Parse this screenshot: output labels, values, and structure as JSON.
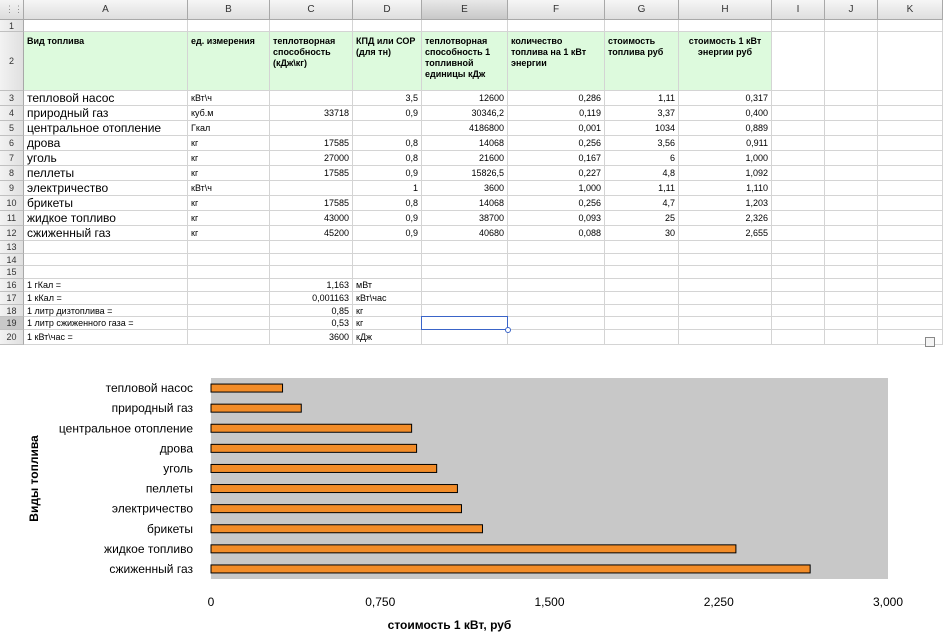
{
  "sheet": {
    "columns": [
      "A",
      "B",
      "C",
      "D",
      "E",
      "F",
      "G",
      "H",
      "I",
      "J",
      "K"
    ],
    "selected_column": "E",
    "selected_row": "19",
    "header_row": {
      "a": "Вид топлива",
      "b": "ед. измерения",
      "c": "теплотворная способность (кДж\\кг)",
      "d": "КПД или СОР (для тн)",
      "e": "теплотворная способность 1 топливной единицы кДж",
      "f": "количество топлива на 1 кВт энергии",
      "g": "стоимость топлива руб",
      "h": "стоимость 1 кВт энергии руб"
    },
    "rows": [
      {
        "n": "3",
        "a": "тепловой насос",
        "b": "кВт\\ч",
        "c": "",
        "d": "3,5",
        "e": "12600",
        "f": "0,286",
        "g": "1,11",
        "h": "0,317"
      },
      {
        "n": "4",
        "a": "природный газ",
        "b": "куб.м",
        "c": "33718",
        "d": "0,9",
        "e": "30346,2",
        "f": "0,119",
        "g": "3,37",
        "h": "0,400"
      },
      {
        "n": "5",
        "a": "центральное отопление",
        "b": "Гкал",
        "c": "",
        "d": "",
        "e": "4186800",
        "f": "0,001",
        "g": "1034",
        "h": "0,889"
      },
      {
        "n": "6",
        "a": "дрова",
        "b": "кг",
        "c": "17585",
        "d": "0,8",
        "e": "14068",
        "f": "0,256",
        "g": "3,56",
        "h": "0,911"
      },
      {
        "n": "7",
        "a": "уголь",
        "b": "кг",
        "c": "27000",
        "d": "0,8",
        "e": "21600",
        "f": "0,167",
        "g": "6",
        "h": "1,000"
      },
      {
        "n": "8",
        "a": "пеллеты",
        "b": "кг",
        "c": "17585",
        "d": "0,9",
        "e": "15826,5",
        "f": "0,227",
        "g": "4,8",
        "h": "1,092"
      },
      {
        "n": "9",
        "a": "электричество",
        "b": "кВт\\ч",
        "c": "",
        "d": "1",
        "e": "3600",
        "f": "1,000",
        "g": "1,11",
        "h": "1,110"
      },
      {
        "n": "10",
        "a": "брикеты",
        "b": "кг",
        "c": "17585",
        "d": "0,8",
        "e": "14068",
        "f": "0,256",
        "g": "4,7",
        "h": "1,203"
      },
      {
        "n": "11",
        "a": "жидкое топливо",
        "b": "кг",
        "c": "43000",
        "d": "0,9",
        "e": "38700",
        "f": "0,093",
        "g": "25",
        "h": "2,326"
      },
      {
        "n": "12",
        "a": "сжиженный газ",
        "b": "кг",
        "c": "45200",
        "d": "0,9",
        "e": "40680",
        "f": "0,088",
        "g": "30",
        "h": "2,655"
      }
    ],
    "notes": [
      {
        "n": "16",
        "a": "1 гКал =",
        "c": "1,163",
        "d": "мВт"
      },
      {
        "n": "17",
        "a": "1 кКал =",
        "c": "0,001163",
        "d": "кВт\\час"
      },
      {
        "n": "18",
        "a": "1 литр дизтоплива =",
        "c": "0,85",
        "d": "кг"
      },
      {
        "n": "19",
        "a": "1 литр сжиженного газа =",
        "c": "0,53",
        "d": "кг"
      },
      {
        "n": "20",
        "a": "1 кВт\\час =",
        "c": "3600",
        "d": "кДж"
      }
    ],
    "empty_rows": [
      "1",
      "13",
      "14",
      "15"
    ]
  },
  "chart_data": {
    "type": "bar",
    "orientation": "horizontal",
    "categories": [
      "тепловой насос",
      "природный газ",
      "центральное отопление",
      "дрова",
      "уголь",
      "пеллеты",
      "электричество",
      "брикеты",
      "жидкое топливо",
      "сжиженный газ"
    ],
    "values": [
      0.317,
      0.4,
      0.889,
      0.911,
      1.0,
      1.092,
      1.11,
      1.203,
      2.326,
      2.655
    ],
    "xlim": [
      0,
      3
    ],
    "ticks": [
      0,
      0.75,
      1.5,
      2.25,
      3
    ],
    "tick_labels": [
      "0",
      "0,750",
      "1,500",
      "2,250",
      "3,000"
    ],
    "xlabel": "стоимость 1 кВт,  руб",
    "ylabel": "Виды топлива",
    "bar_color": "#f28c28",
    "plot_bg": "#c8c8c8",
    "legend": "none",
    "grid": false
  }
}
